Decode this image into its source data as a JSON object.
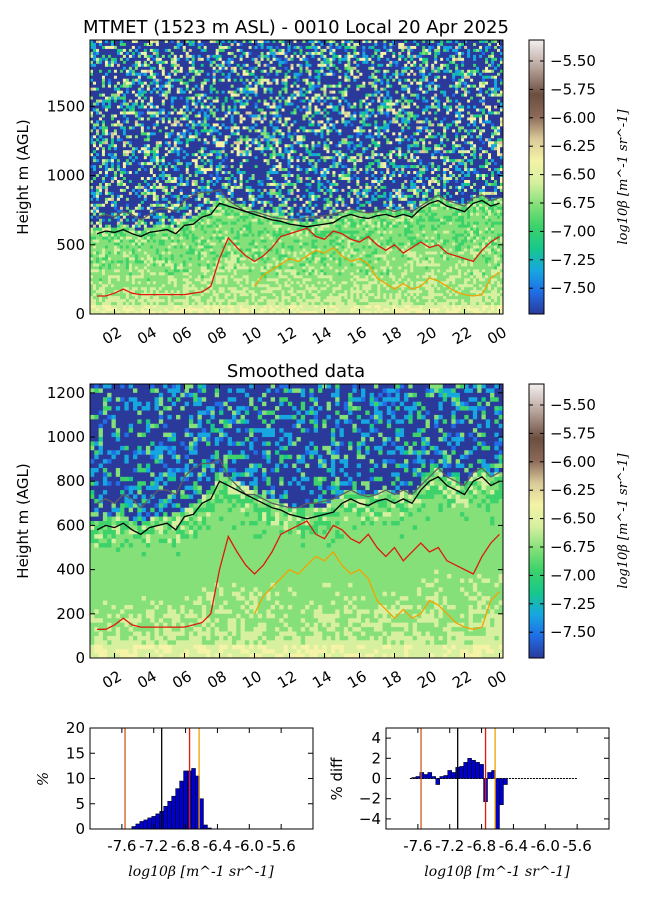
{
  "colors": {
    "cmap": [
      "#2b3a9a",
      "#1f6ee6",
      "#16a7e0",
      "#18c88a",
      "#3dd26a",
      "#86e07a",
      "#d6f0a0",
      "#f4f3a6",
      "#d9c898",
      "#8c6a5a",
      "#6b4e3f",
      "#b8a49b",
      "#f3efef"
    ],
    "black": "#000000",
    "red": "#dd1a0a",
    "orange": "#f2a200",
    "gray": "#606060",
    "hist_bar": "#0000cc"
  },
  "chart_data": [
    {
      "type": "heatmap",
      "title": "MTMET (1523 m ASL) - 0010 Local 20 Apr 2025",
      "xlabel": "",
      "ylabel": "Height m (AGL)",
      "x_ticks": [
        "02",
        "04",
        "06",
        "08",
        "10",
        "12",
        "14",
        "16",
        "18",
        "20",
        "22",
        "00"
      ],
      "y_ticks": [
        "0",
        "500",
        "1000",
        "1500"
      ],
      "ylim": [
        0,
        1980
      ],
      "colorbar_label": "log10β [m^-1 sr^-1]",
      "colorbar_ticks": [
        "−5.50",
        "−5.75",
        "−6.00",
        "−6.25",
        "−6.50",
        "−6.75",
        "−7.00",
        "−7.25",
        "−7.50"
      ],
      "clim": [
        -7.6,
        -5.4
      ],
      "x_hours": [
        1.0,
        1.5,
        2.0,
        2.5,
        3.0,
        3.5,
        4.0,
        4.5,
        5.0,
        5.5,
        6.0,
        6.5,
        7.0,
        7.5,
        8.0,
        8.5,
        9.0,
        9.5,
        10.0,
        10.5,
        11.0,
        11.5,
        12.0,
        12.5,
        13.0,
        13.5,
        14.0,
        14.5,
        15.0,
        15.5,
        16.0,
        16.5,
        17.0,
        17.5,
        18.0,
        18.5,
        19.0,
        19.5,
        20.0,
        20.5,
        21.0,
        21.5,
        22.0,
        22.5,
        23.0,
        23.5,
        24.0
      ],
      "series": [
        {
          "color": "black",
          "values": [
            580,
            600,
            590,
            610,
            580,
            560,
            590,
            600,
            610,
            580,
            640,
            650,
            700,
            720,
            800,
            780,
            760,
            740,
            720,
            700,
            680,
            670,
            650,
            640,
            630,
            640,
            650,
            660,
            700,
            720,
            700,
            690,
            710,
            720,
            700,
            720,
            700,
            760,
            800,
            820,
            780,
            760,
            740,
            800,
            820,
            780,
            800
          ]
        },
        {
          "color": "gray",
          "values": [
            700,
            720,
            700,
            740,
            720,
            680,
            720,
            760,
            760,
            740,
            820,
            860,
            880,
            880,
            900,
            820,
            780,
            740,
            740,
            720,
            700,
            690,
            680,
            680,
            700,
            700,
            710,
            720,
            740,
            760,
            740,
            730,
            740,
            760,
            740,
            760,
            740,
            780,
            820,
            860,
            820,
            800,
            780,
            840,
            860,
            820,
            840
          ]
        },
        {
          "color": "red",
          "values": [
            130,
            130,
            150,
            180,
            150,
            140,
            140,
            140,
            140,
            140,
            140,
            150,
            160,
            200,
            400,
            550,
            480,
            420,
            380,
            420,
            480,
            560,
            580,
            600,
            620,
            560,
            540,
            600,
            580,
            540,
            520,
            560,
            500,
            460,
            500,
            440,
            480,
            520,
            480,
            500,
            440,
            420,
            400,
            380,
            460,
            520,
            560
          ]
        },
        {
          "color": "orange",
          "values": [
            null,
            null,
            null,
            null,
            null,
            null,
            null,
            null,
            null,
            null,
            null,
            null,
            null,
            null,
            null,
            null,
            null,
            null,
            200,
            280,
            320,
            360,
            400,
            380,
            420,
            460,
            440,
            480,
            420,
            380,
            400,
            360,
            260,
            220,
            180,
            220,
            180,
            200,
            260,
            240,
            200,
            160,
            140,
            130,
            140,
            260,
            300
          ]
        }
      ]
    },
    {
      "type": "heatmap",
      "title": "Smoothed data",
      "xlabel": "",
      "ylabel": "Height m (AGL)",
      "x_ticks": [
        "02",
        "04",
        "06",
        "08",
        "10",
        "12",
        "14",
        "16",
        "18",
        "20",
        "22",
        "00"
      ],
      "y_ticks": [
        "0",
        "200",
        "400",
        "600",
        "800",
        "1000",
        "1200"
      ],
      "ylim": [
        0,
        1240
      ],
      "colorbar_label": "log10β [m^-1 sr^-1]",
      "colorbar_ticks": [
        "−5.50",
        "−5.75",
        "−6.00",
        "−6.25",
        "−6.50",
        "−6.75",
        "−7.00",
        "−7.25",
        "−7.50"
      ],
      "clim": [
        -7.6,
        -5.4
      ]
    },
    {
      "type": "bar",
      "xlabel": "log10β [m^-1 sr^-1]",
      "ylabel": "%",
      "x_ticks": [
        "-7.6",
        "-7.2",
        "-6.8",
        "-6.4",
        "-6.0",
        "-5.6"
      ],
      "xlim": [
        -8.0,
        -5.2
      ],
      "ylim": [
        0,
        20
      ],
      "y_ticks": [
        "0",
        "5",
        "10",
        "15",
        "20"
      ],
      "bin_centers": [
        -7.45,
        -7.4,
        -7.35,
        -7.3,
        -7.25,
        -7.2,
        -7.15,
        -7.1,
        -7.05,
        -7.0,
        -6.95,
        -6.9,
        -6.85,
        -6.8,
        -6.75,
        -6.7,
        -6.65,
        -6.6,
        -6.55,
        -6.5
      ],
      "values": [
        0.5,
        1.0,
        1.5,
        1.8,
        2.2,
        2.5,
        3.0,
        3.5,
        4.5,
        5.5,
        6.5,
        8.0,
        9.5,
        11.5,
        11.5,
        12.0,
        10.5,
        6.0,
        0.8,
        0.2
      ],
      "vlines": [
        {
          "x": -7.56,
          "color": "orange_red"
        },
        {
          "x": -7.1,
          "color": "black"
        },
        {
          "x": -6.75,
          "color": "red"
        },
        {
          "x": -6.63,
          "color": "orange"
        }
      ]
    },
    {
      "type": "bar",
      "xlabel": "log10β [m^-1 sr^-1]",
      "ylabel": "% diff",
      "x_ticks": [
        "-7.6",
        "-7.2",
        "-6.8",
        "-6.4",
        "-6.0",
        "-5.6"
      ],
      "xlim": [
        -8.0,
        -5.2
      ],
      "ylim": [
        -5,
        5
      ],
      "y_ticks": [
        "−4",
        "−2",
        "0",
        "2",
        "4"
      ],
      "bin_centers": [
        -7.65,
        -7.6,
        -7.55,
        -7.5,
        -7.45,
        -7.4,
        -7.35,
        -7.3,
        -7.25,
        -7.2,
        -7.15,
        -7.1,
        -7.05,
        -7.0,
        -6.95,
        -6.9,
        -6.85,
        -6.8,
        -6.75,
        -6.7,
        -6.65,
        -6.6,
        -6.55,
        -6.5
      ],
      "values": [
        0.1,
        0.2,
        0.6,
        0.4,
        0.6,
        0.2,
        -0.6,
        0.2,
        0.3,
        0.8,
        0.6,
        1.1,
        1.2,
        1.6,
        2.0,
        1.8,
        1.6,
        1.4,
        -2.3,
        0.6,
        0.8,
        -5.0,
        -2.6,
        -0.6
      ],
      "vlines": [
        {
          "x": -7.56,
          "color": "orange_red"
        },
        {
          "x": -7.1,
          "color": "black"
        },
        {
          "x": -6.75,
          "color": "red"
        },
        {
          "x": -6.63,
          "color": "orange"
        }
      ]
    }
  ]
}
